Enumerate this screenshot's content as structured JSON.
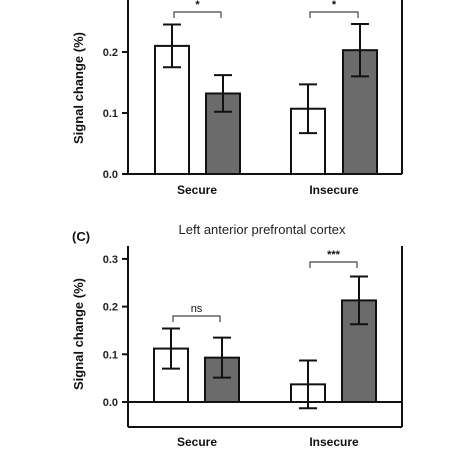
{
  "chart_data": [
    {
      "type": "bar",
      "panel_label": "",
      "title": "",
      "ylabel": "Signal change (%)",
      "categories": [
        "Secure",
        "Insecure"
      ],
      "ylim": [
        0.0,
        0.25
      ],
      "yticks": [
        "0.0",
        "0.1",
        "0.2"
      ],
      "series": [
        {
          "values": [
            0.21,
            0.107
          ],
          "errors": [
            0.035,
            0.04
          ],
          "color": "#ffffff"
        },
        {
          "values": [
            0.132,
            0.203
          ],
          "errors": [
            0.03,
            0.043
          ],
          "color": "#6b6b6b"
        }
      ],
      "significance": [
        "*",
        "*"
      ]
    },
    {
      "type": "bar",
      "panel_label": "(C)",
      "title": "Left anterior prefrontal cortex",
      "ylabel": "Signal change (%)",
      "categories": [
        "Secure",
        "Insecure"
      ],
      "ylim": [
        -0.05,
        0.32
      ],
      "yticks": [
        "0.0",
        "0.1",
        "0.2",
        "0.3"
      ],
      "series": [
        {
          "values": [
            0.112,
            0.037
          ],
          "errors": [
            0.042,
            0.05
          ],
          "color": "#ffffff"
        },
        {
          "values": [
            0.093,
            0.213
          ],
          "errors": [
            0.042,
            0.05
          ],
          "color": "#6b6b6b"
        }
      ],
      "significance": [
        "ns",
        "***"
      ]
    }
  ]
}
